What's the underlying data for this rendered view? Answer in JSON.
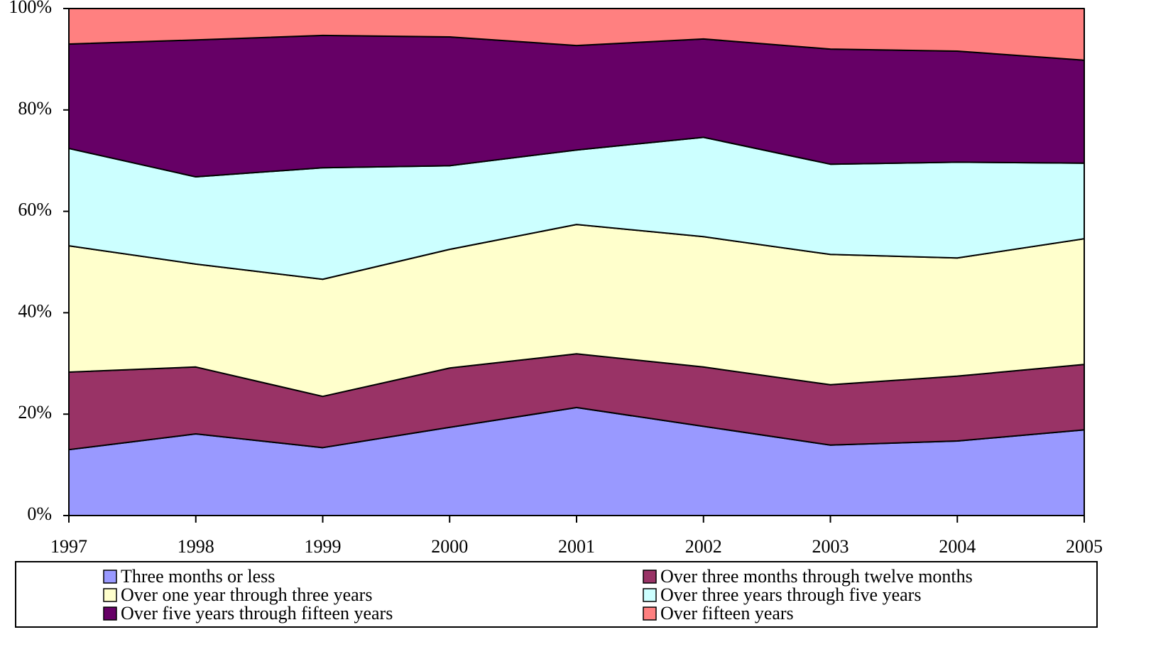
{
  "chart_data": {
    "type": "stacked-area",
    "categories": [
      "1997",
      "1998",
      "1999",
      "2000",
      "2001",
      "2002",
      "2003",
      "2004",
      "2005"
    ],
    "series": [
      {
        "name": "Three months or less",
        "color": "#9999ff",
        "values": [
          13.0,
          16.1,
          13.4,
          17.4,
          21.3,
          17.6,
          13.9,
          14.7,
          16.9
        ]
      },
      {
        "name": "Over three months through twelve months",
        "color": "#993366",
        "values": [
          15.3,
          13.2,
          10.1,
          11.7,
          10.6,
          11.7,
          11.9,
          12.8,
          12.9
        ]
      },
      {
        "name": "Over one year through three years",
        "color": "#ffffcc",
        "values": [
          24.9,
          20.3,
          23.1,
          23.4,
          25.5,
          25.7,
          25.7,
          23.3,
          24.8
        ]
      },
      {
        "name": "Over three years through five years",
        "color": "#ccffff",
        "values": [
          19.2,
          17.2,
          22.0,
          16.5,
          14.7,
          19.6,
          17.8,
          18.9,
          14.9
        ]
      },
      {
        "name": "Over five years through fifteen years",
        "color": "#660066",
        "values": [
          20.6,
          27.0,
          26.1,
          25.4,
          20.6,
          19.4,
          22.7,
          21.9,
          20.3
        ]
      },
      {
        "name": "Over fifteen years",
        "color": "#ff8080",
        "values": [
          7.0,
          6.2,
          5.3,
          5.6,
          7.3,
          6.0,
          8.0,
          8.4,
          10.2
        ]
      }
    ],
    "ylim": [
      0,
      100
    ],
    "yticks": [
      {
        "value": 0,
        "label": "0%"
      },
      {
        "value": 20,
        "label": "20%"
      },
      {
        "value": 40,
        "label": "40%"
      },
      {
        "value": 60,
        "label": "60%"
      },
      {
        "value": 80,
        "label": "80%"
      },
      {
        "value": 100,
        "label": "100%"
      }
    ],
    "legend": "bottom"
  }
}
